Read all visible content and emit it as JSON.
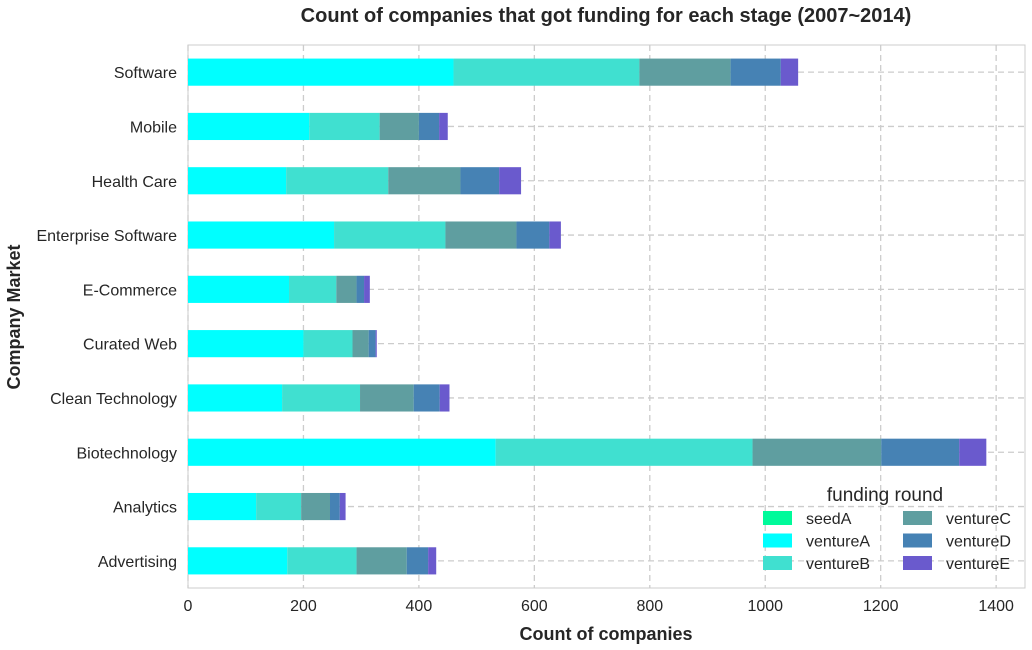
{
  "chart_data": {
    "type": "bar",
    "orientation": "horizontal",
    "stacked": true,
    "title": "Count of companies that got funding for each stage (2007~2014)",
    "xlabel": "Count of companies",
    "ylabel": "Company Market",
    "xlim": [
      0,
      1450
    ],
    "xticks": [
      "0",
      "200",
      "400",
      "600",
      "800",
      "1000",
      "1200",
      "1400"
    ],
    "grid": true,
    "categories": [
      "Software",
      "Mobile",
      "Health Care",
      "Enterprise Software",
      "E-Commerce",
      "Curated Web",
      "Clean Technology",
      "Biotechnology",
      "Analytics",
      "Advertising"
    ],
    "series": [
      {
        "name": "seedA",
        "color": "#00FA9A",
        "values": [
          0,
          0,
          0,
          0,
          0,
          0,
          0,
          0,
          0,
          0
        ]
      },
      {
        "name": "ventureA",
        "color": "#00FFFF",
        "values": [
          460,
          210,
          170,
          253,
          175,
          200,
          163,
          533,
          118,
          172
        ]
      },
      {
        "name": "ventureB",
        "color": "#40E0D0",
        "values": [
          322,
          122,
          177,
          193,
          82,
          85,
          135,
          445,
          78,
          120
        ]
      },
      {
        "name": "ventureC",
        "color": "#5F9EA0",
        "values": [
          158,
          68,
          125,
          123,
          35,
          28,
          93,
          223,
          50,
          87
        ]
      },
      {
        "name": "ventureD",
        "color": "#4682B4",
        "values": [
          87,
          35,
          67,
          57,
          13,
          12,
          45,
          135,
          17,
          37
        ]
      },
      {
        "name": "ventureE",
        "color": "#6A5ACD",
        "values": [
          30,
          15,
          38,
          20,
          10,
          2,
          17,
          47,
          10,
          14
        ]
      }
    ],
    "legend": {
      "title": "funding round",
      "position": "lower-right",
      "columns": 2
    }
  }
}
